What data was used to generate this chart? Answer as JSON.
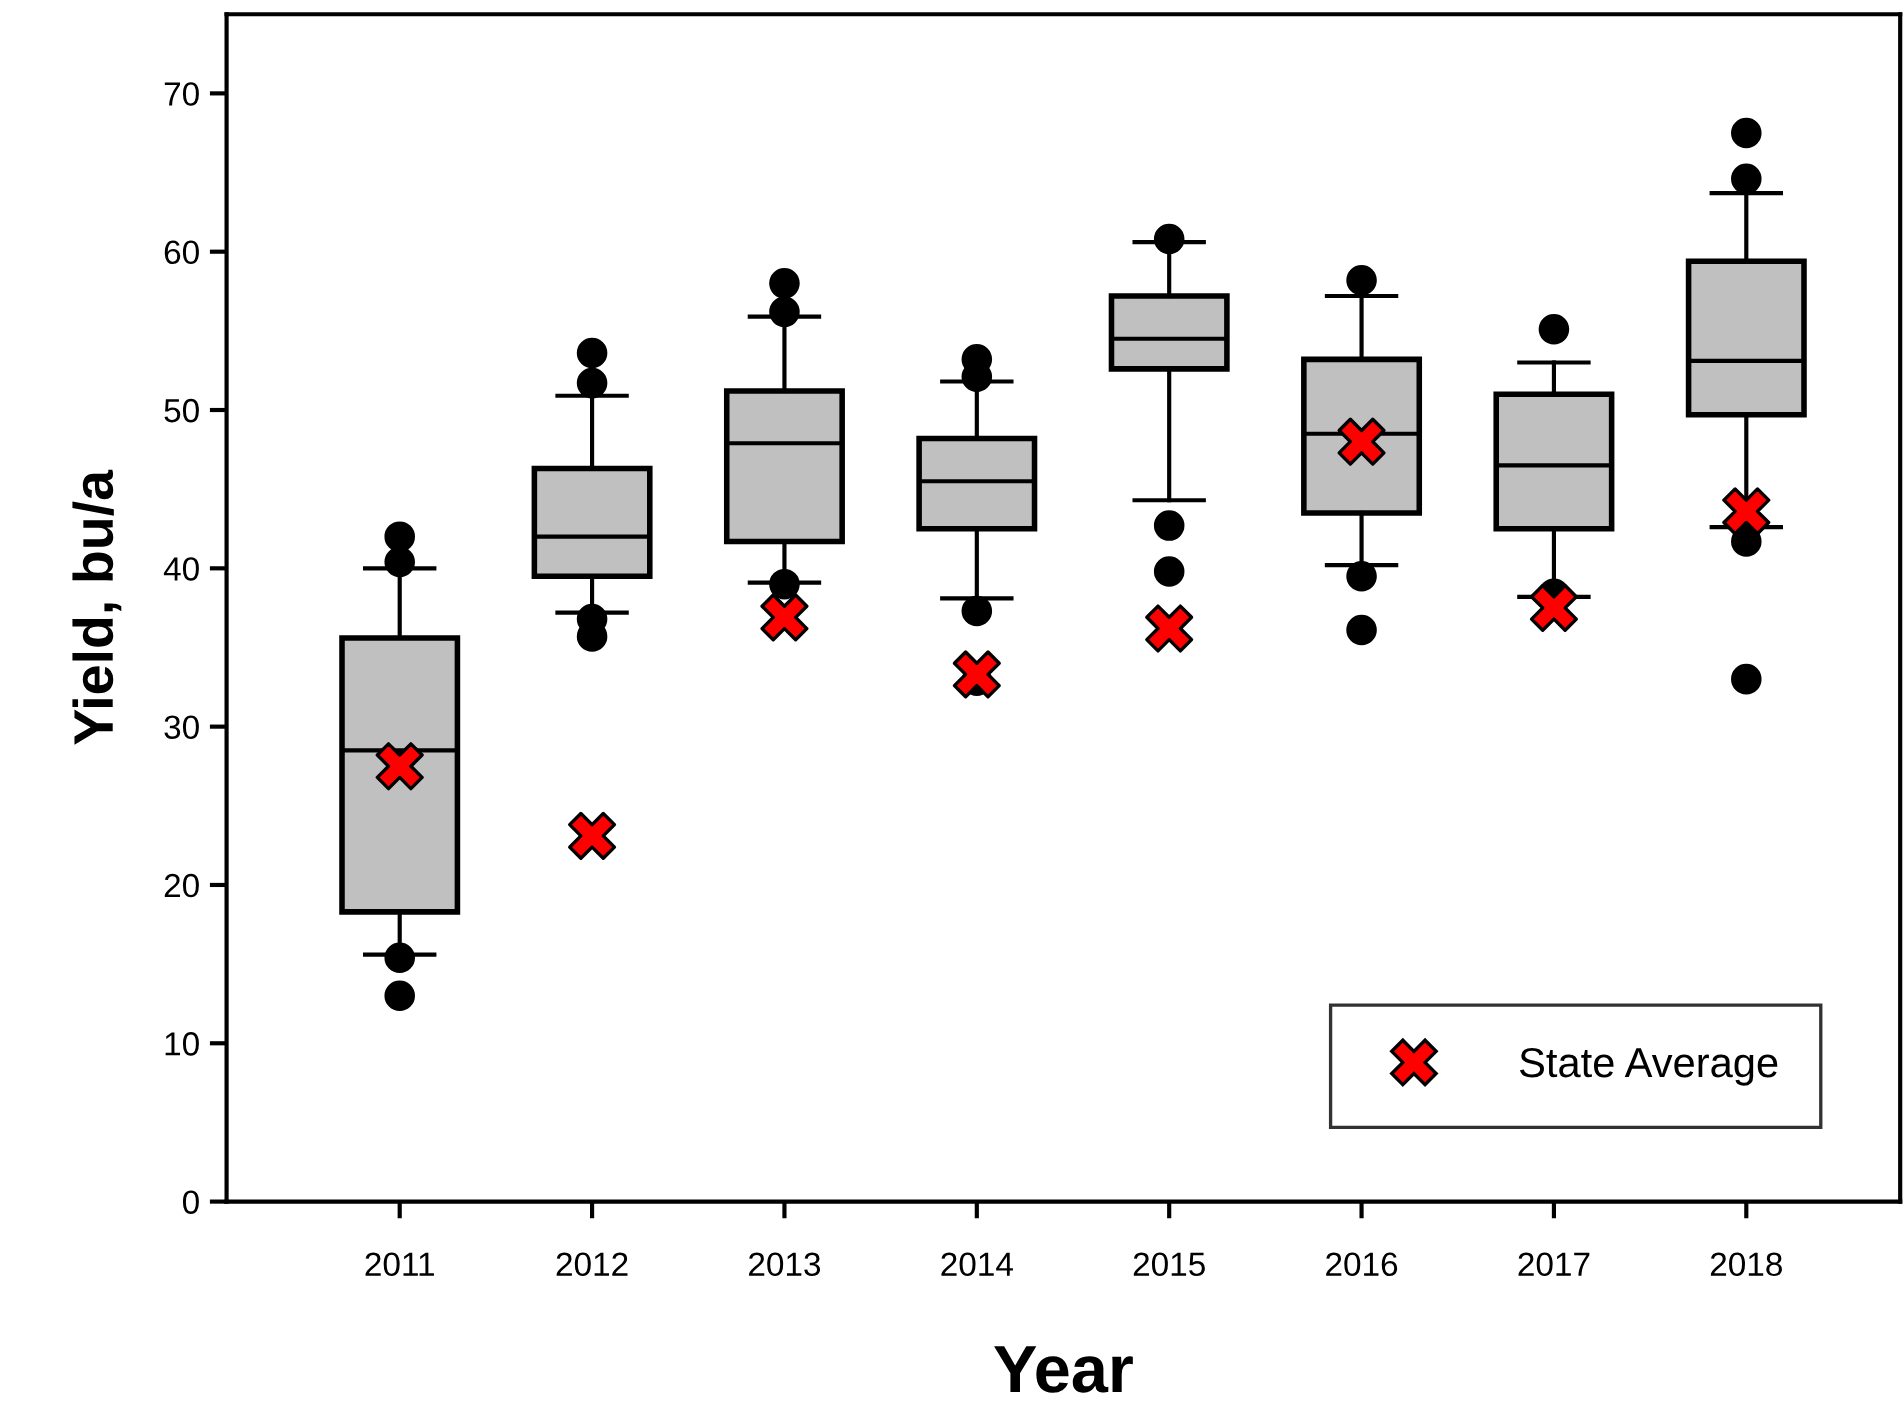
{
  "chart_data": {
    "type": "box",
    "xlabel": "Year",
    "ylabel": "Yield, bu/a",
    "categories": [
      "2011",
      "2012",
      "2013",
      "2014",
      "2015",
      "2016",
      "2017",
      "2018"
    ],
    "ylim": [
      0,
      75
    ],
    "yticks": [
      0,
      10,
      20,
      30,
      40,
      50,
      60,
      70
    ],
    "grid": false,
    "legend": "bottom right",
    "series": [
      {
        "color": "#c0c0c0",
        "boxes": [
          {
            "low": 15.6,
            "q1": 18.3,
            "median": 28.5,
            "q3": 35.6,
            "high": 40.0,
            "outliers": [
              42.0,
              40.4,
              15.4,
              13.0
            ]
          },
          {
            "low": 37.2,
            "q1": 39.5,
            "median": 42.0,
            "q3": 46.3,
            "high": 50.9,
            "outliers": [
              53.6,
              51.7,
              36.8,
              35.7
            ]
          },
          {
            "low": 39.1,
            "q1": 41.7,
            "median": 47.9,
            "q3": 51.2,
            "high": 55.9,
            "outliers": [
              58.0,
              56.2,
              39.0
            ]
          },
          {
            "low": 38.1,
            "q1": 42.5,
            "median": 45.5,
            "q3": 48.2,
            "high": 51.8,
            "outliers": [
              53.2,
              52.1,
              37.3,
              32.9
            ]
          },
          {
            "low": 44.3,
            "q1": 52.6,
            "median": 54.5,
            "q3": 57.2,
            "high": 60.6,
            "outliers": [
              60.8,
              42.7,
              39.8
            ]
          },
          {
            "low": 40.2,
            "q1": 43.5,
            "median": 48.5,
            "q3": 53.2,
            "high": 57.2,
            "outliers": [
              58.2,
              39.5,
              36.1
            ]
          },
          {
            "low": 38.2,
            "q1": 42.5,
            "median": 46.5,
            "q3": 51.0,
            "high": 53.0,
            "outliers": [
              55.1,
              38.4
            ]
          },
          {
            "low": 42.6,
            "q1": 49.7,
            "median": 53.1,
            "q3": 59.4,
            "high": 63.7,
            "outliers": [
              67.5,
              64.6,
              41.7,
              33.0
            ]
          }
        ]
      },
      {
        "type": "scatter",
        "name": "State Average",
        "color": "#ff0000",
        "marker": "cross",
        "values": [
          27.5,
          23.1,
          36.9,
          33.3,
          36.2,
          48.0,
          37.5,
          43.6
        ]
      }
    ]
  }
}
